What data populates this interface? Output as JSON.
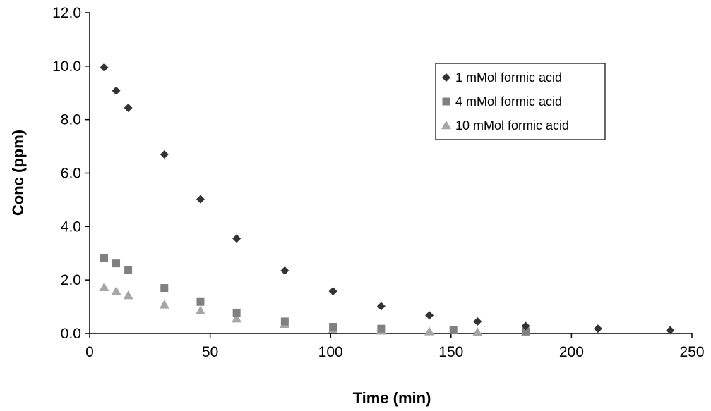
{
  "chart_data": {
    "type": "scatter",
    "title": "",
    "xlabel": "Time (min)",
    "ylabel": "Conc (ppm)",
    "xlim": [
      0,
      250
    ],
    "ylim": [
      0,
      12
    ],
    "xticks": [
      "0",
      "50",
      "100",
      "150",
      "200",
      "250"
    ],
    "yticks": [
      "0.0",
      "2.0",
      "4.0",
      "6.0",
      "8.0",
      "10.0",
      "12.0"
    ],
    "grid": false,
    "legend_position": "top-right",
    "series": [
      {
        "name": "1 mMol formic acid",
        "marker": "diamond",
        "color": "#333333",
        "x": [
          6,
          11,
          16,
          31,
          46,
          61,
          81,
          101,
          121,
          141,
          161,
          181,
          211,
          241
        ],
        "y": [
          9.95,
          9.08,
          8.44,
          6.7,
          5.02,
          3.55,
          2.35,
          1.58,
          1.02,
          0.68,
          0.45,
          0.28,
          0.18,
          0.12
        ]
      },
      {
        "name": "4 mMol formic acid",
        "marker": "square",
        "color": "#808080",
        "x": [
          6,
          11,
          16,
          31,
          46,
          61,
          81,
          101,
          121,
          151,
          181
        ],
        "y": [
          2.82,
          2.62,
          2.38,
          1.7,
          1.18,
          0.78,
          0.45,
          0.25,
          0.18,
          0.12,
          0.08
        ]
      },
      {
        "name": "10 mMol formic acid",
        "marker": "triangle",
        "color": "#a6a6a6",
        "x": [
          6,
          11,
          16,
          31,
          46,
          61,
          81,
          101,
          121,
          141,
          161,
          181
        ],
        "y": [
          1.72,
          1.58,
          1.42,
          1.07,
          0.85,
          0.55,
          0.35,
          0.15,
          0.1,
          0.07,
          0.05,
          0.04
        ]
      }
    ]
  }
}
